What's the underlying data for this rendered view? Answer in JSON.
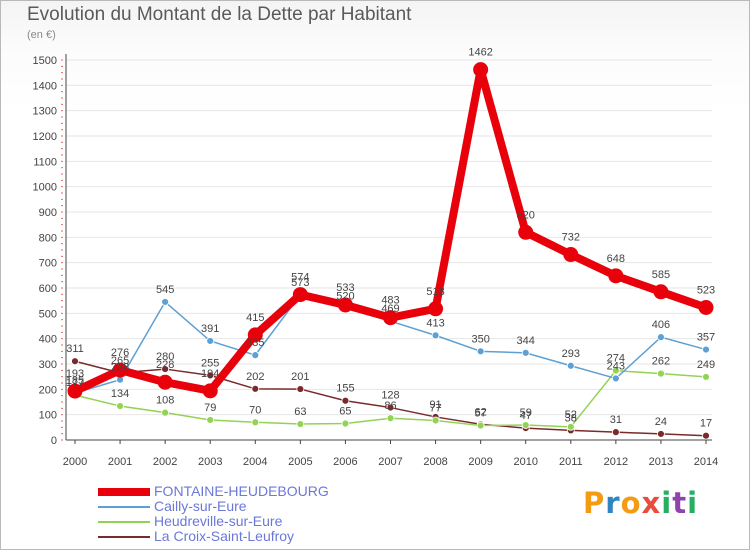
{
  "title": "Evolution du Montant de la Dette par Habitant",
  "unit_label": "(en €)",
  "brand": {
    "text": "Proxiti",
    "colors": [
      "#f39c12",
      "#2e86c1",
      "#f39c12",
      "#e74c3c",
      "#27ae60",
      "#8e44ad",
      "#27ae60"
    ]
  },
  "chart_data": {
    "type": "line",
    "title": "Evolution du Montant de la Dette par Habitant",
    "ylabel": "(en €)",
    "xlabel": "",
    "ylim": [
      0,
      1500
    ],
    "yticks": [
      0,
      100,
      200,
      300,
      400,
      500,
      600,
      700,
      800,
      900,
      1000,
      1100,
      1200,
      1300,
      1400,
      1500
    ],
    "categories": [
      "2000",
      "2001",
      "2002",
      "2003",
      "2004",
      "2005",
      "2006",
      "2007",
      "2008",
      "2009",
      "2010",
      "2011",
      "2012",
      "2013",
      "2014"
    ],
    "series": [
      {
        "name": "FONTAINE-HEUDEBOURG",
        "color": "#e8010b",
        "values": [
          193,
          276,
          228,
          194,
          415,
          574,
          533,
          483,
          518,
          1462,
          820,
          732,
          648,
          585,
          523
        ]
      },
      {
        "name": "Cailly-sur-Eure",
        "color": "#5da0d4",
        "values": [
          185,
          238,
          545,
          391,
          335,
          573,
          520,
          469,
          413,
          350,
          344,
          293,
          243,
          406,
          357
        ]
      },
      {
        "name": "Heudreville-sur-Eure",
        "color": "#92d354",
        "values": [
          177,
          134,
          108,
          79,
          70,
          63,
          65,
          86,
          77,
          57,
          59,
          52,
          274,
          262,
          249
        ]
      },
      {
        "name": "La Croix-Saint-Leufroy",
        "color": "#7a2a2a",
        "values": [
          311,
          265,
          280,
          255,
          202,
          201,
          155,
          128,
          91,
          62,
          47,
          38,
          31,
          24,
          17
        ]
      }
    ]
  }
}
